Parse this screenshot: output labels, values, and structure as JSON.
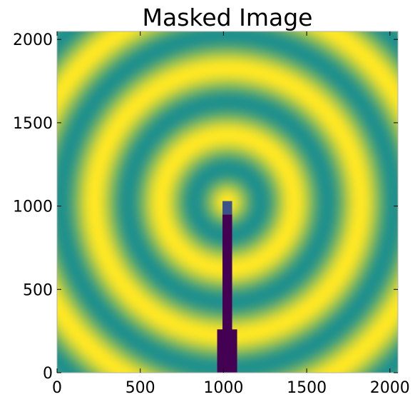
{
  "chart_data": {
    "type": "heatmap",
    "title": "Masked Image",
    "xlabel": "",
    "ylabel": "",
    "image_shape": [
      2048,
      2048
    ],
    "xlim": [
      0,
      2048
    ],
    "ylim": [
      0,
      2048
    ],
    "x_ticks": [
      {
        "value": 0,
        "label": "0"
      },
      {
        "value": 500,
        "label": "500"
      },
      {
        "value": 1000,
        "label": "1000"
      },
      {
        "value": 1500,
        "label": "1500"
      },
      {
        "value": 2000,
        "label": "2000"
      }
    ],
    "y_ticks": [
      {
        "value": 0,
        "label": "0"
      },
      {
        "value": 500,
        "label": "500"
      },
      {
        "value": 1000,
        "label": "1000"
      },
      {
        "value": 1500,
        "label": "1500"
      },
      {
        "value": 2000,
        "label": "2000"
      }
    ],
    "pattern": {
      "kind": "concentric-rings",
      "center": [
        1024,
        1024
      ],
      "ring_period": 400,
      "colors": {
        "high": "#fde725",
        "low": "#21918c"
      }
    },
    "masked_regions": [
      {
        "name": "beamstop-holder",
        "x": [
          962,
          1082
        ],
        "y": [
          0,
          260
        ],
        "color": "#440154"
      },
      {
        "name": "beamstop-arm",
        "x": [
          994,
          1052
        ],
        "y": [
          0,
          950
        ],
        "color": "#440154"
      },
      {
        "name": "beamstop-head",
        "x": [
          994,
          1052
        ],
        "y": [
          950,
          1030
        ],
        "color": "#3b528b"
      }
    ],
    "grid": false,
    "legend": "none"
  }
}
